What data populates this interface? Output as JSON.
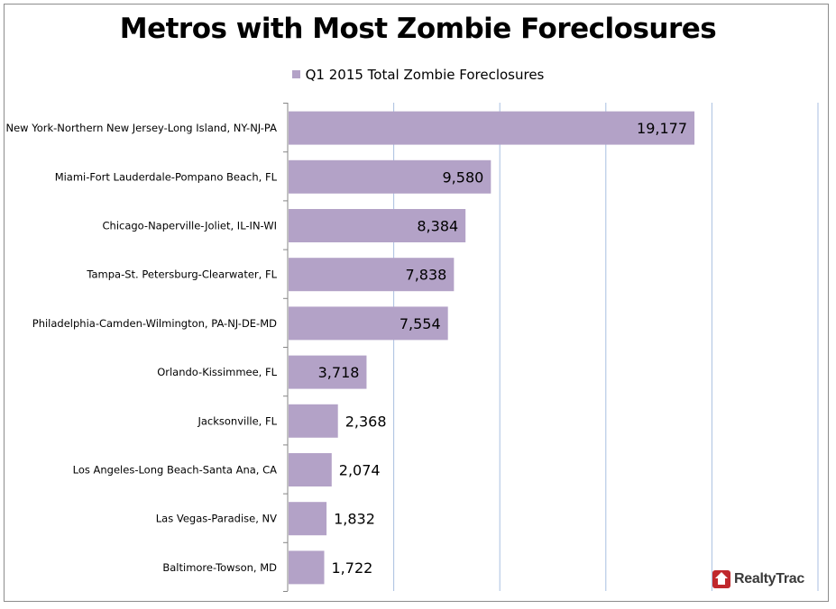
{
  "chart_data": {
    "type": "bar",
    "orientation": "horizontal",
    "title": "Metros with Most Zombie Foreclosures",
    "legend_position": "top",
    "grid": true,
    "xlim": [
      0,
      25000
    ],
    "categories": [
      "New York-Northern New Jersey-Long Island, NY-NJ-PA",
      "Miami-Fort Lauderdale-Pompano Beach, FL",
      "Chicago-Naperville-Joliet, IL-IN-WI",
      "Tampa-St. Petersburg-Clearwater, FL",
      "Philadelphia-Camden-Wilmington, PA-NJ-DE-MD",
      "Orlando-Kissimmee, FL",
      "Jacksonville, FL",
      "Los Angeles-Long Beach-Santa Ana, CA",
      "Las Vegas-Paradise, NV",
      "Baltimore-Towson, MD"
    ],
    "series": [
      {
        "name": "Q1 2015 Total Zombie Foreclosures",
        "color": "#b3a2c7",
        "values": [
          19177,
          9580,
          8384,
          7838,
          7554,
          3718,
          2368,
          2074,
          1832,
          1722
        ],
        "labels": [
          "19,177",
          "9,580",
          "8,384",
          "7,838",
          "7,554",
          "3,718",
          "2,368",
          "2,074",
          "1,832",
          "1,722"
        ]
      }
    ]
  },
  "logo": {
    "text": "RealtyTrac",
    "icon": "house-icon",
    "color": "#c0282d"
  }
}
